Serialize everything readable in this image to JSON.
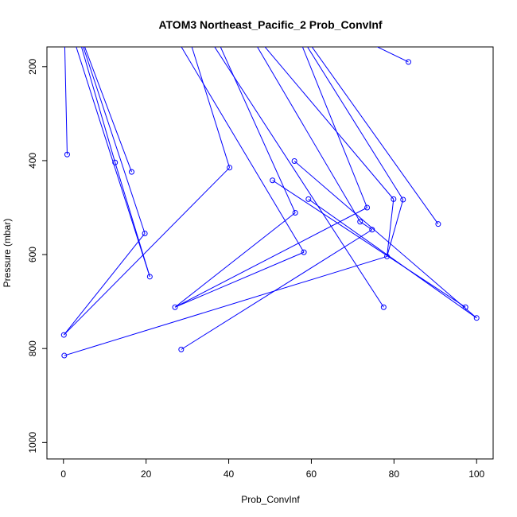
{
  "chart_data": {
    "type": "scatter",
    "title": "ATOM3 Northeast_Pacific_2 Prob_ConvInf",
    "xlabel": "Prob_ConvInf",
    "ylabel": "Pressure (mbar)",
    "xlim": [
      -4,
      104
    ],
    "ylim": [
      1035,
      158
    ],
    "y_axis": "inverted",
    "xticks": [
      0,
      20,
      40,
      60,
      80,
      100
    ],
    "yticks": [
      200,
      400,
      600,
      800,
      1000
    ],
    "grid": false,
    "color": "#0000ff",
    "points": [
      {
        "x": 83.5,
        "y": 190
      },
      {
        "x": 0.9,
        "y": 387
      },
      {
        "x": 12.5,
        "y": 404
      },
      {
        "x": 16.5,
        "y": 424
      },
      {
        "x": 40.2,
        "y": 415
      },
      {
        "x": 55.9,
        "y": 401
      },
      {
        "x": 50.6,
        "y": 442
      },
      {
        "x": 59.3,
        "y": 482
      },
      {
        "x": 79.9,
        "y": 482
      },
      {
        "x": 82.2,
        "y": 483
      },
      {
        "x": 73.5,
        "y": 500
      },
      {
        "x": 56.1,
        "y": 511
      },
      {
        "x": 71.8,
        "y": 530
      },
      {
        "x": 90.7,
        "y": 535
      },
      {
        "x": 19.7,
        "y": 555
      },
      {
        "x": 74.7,
        "y": 547
      },
      {
        "x": 58.2,
        "y": 595
      },
      {
        "x": 78.3,
        "y": 604
      },
      {
        "x": 20.9,
        "y": 647
      },
      {
        "x": 27.0,
        "y": 712
      },
      {
        "x": 77.5,
        "y": 712
      },
      {
        "x": 97.3,
        "y": 712
      },
      {
        "x": 100.0,
        "y": 735
      },
      {
        "x": 0.1,
        "y": 771
      },
      {
        "x": 28.5,
        "y": 802
      },
      {
        "x": 0.2,
        "y": 815
      }
    ],
    "segments": [
      [
        [
          74.1,
          150
        ],
        [
          83.5,
          190
        ]
      ],
      [
        [
          0.3,
          150
        ],
        [
          0.9,
          387
        ]
      ],
      [
        [
          4.1,
          150
        ],
        [
          12.5,
          404
        ]
      ],
      [
        [
          4.8,
          150
        ],
        [
          16.5,
          424
        ]
      ],
      [
        [
          4.5,
          150
        ],
        [
          19.7,
          555
        ]
      ],
      [
        [
          2.8,
          150
        ],
        [
          20.9,
          647
        ]
      ],
      [
        [
          12.5,
          404
        ],
        [
          20.9,
          647
        ]
      ],
      [
        [
          30.8,
          150
        ],
        [
          40.2,
          415
        ]
      ],
      [
        [
          40.2,
          415
        ],
        [
          0.1,
          771
        ]
      ],
      [
        [
          19.7,
          555
        ],
        [
          0.1,
          771
        ]
      ],
      [
        [
          37.6,
          150
        ],
        [
          56.1,
          511
        ]
      ],
      [
        [
          56.1,
          511
        ],
        [
          27.0,
          712
        ]
      ],
      [
        [
          73.5,
          500
        ],
        [
          27.0,
          712
        ]
      ],
      [
        [
          58.2,
          595
        ],
        [
          27.0,
          712
        ]
      ],
      [
        [
          28.0,
          150
        ],
        [
          58.2,
          595
        ]
      ],
      [
        [
          36.0,
          150
        ],
        [
          77.5,
          712
        ]
      ],
      [
        [
          46.4,
          150
        ],
        [
          71.8,
          530
        ]
      ],
      [
        [
          57.5,
          150
        ],
        [
          73.5,
          500
        ]
      ],
      [
        [
          48.0,
          150
        ],
        [
          79.9,
          482
        ]
      ],
      [
        [
          79.9,
          482
        ],
        [
          78.3,
          604
        ]
      ],
      [
        [
          82.2,
          483
        ],
        [
          78.3,
          604
        ]
      ],
      [
        [
          58.5,
          150
        ],
        [
          82.2,
          483
        ]
      ],
      [
        [
          59.5,
          150
        ],
        [
          90.7,
          535
        ]
      ],
      [
        [
          50.6,
          442
        ],
        [
          97.3,
          712
        ]
      ],
      [
        [
          55.9,
          401
        ],
        [
          100.0,
          735
        ]
      ],
      [
        [
          59.3,
          482
        ],
        [
          100.0,
          735
        ]
      ],
      [
        [
          71.8,
          530
        ],
        [
          74.7,
          547
        ]
      ],
      [
        [
          74.7,
          547
        ],
        [
          28.5,
          802
        ]
      ],
      [
        [
          78.3,
          604
        ],
        [
          0.2,
          815
        ]
      ]
    ]
  }
}
